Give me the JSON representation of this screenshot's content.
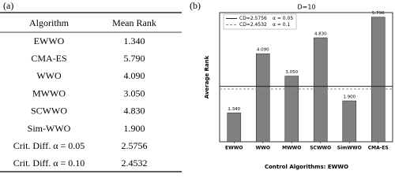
{
  "table": {
    "panel_label": "(a)",
    "header": [
      "Algorithm",
      "Mean Rank"
    ],
    "rows": [
      [
        "EWWO",
        "1.340"
      ],
      [
        "CMA-ES",
        "5.790"
      ],
      [
        "WWO",
        "4.090"
      ],
      [
        "MWWO",
        "3.050"
      ],
      [
        "SCWWO",
        "4.830"
      ],
      [
        "Sim-WWO",
        "1.900"
      ],
      [
        "Crit. Diff. α = 0.05",
        "2.5756"
      ],
      [
        "Crit. Diff. α = 0.10",
        "2.4532"
      ]
    ]
  },
  "chart_data": {
    "type": "bar",
    "panel_label": "(b)",
    "title": "D=10",
    "y_label": "Average Rank",
    "x_label": "Control Algorithms: EWWO",
    "categories": [
      "EWWO",
      "WWO",
      "MWWO",
      "SCWWO",
      "SimWWO",
      "CMA-ES"
    ],
    "values": [
      1.34,
      4.09,
      3.05,
      4.83,
      1.9,
      5.79
    ],
    "value_labels": [
      "1.340",
      "4.090",
      "3.050",
      "4.830",
      "1.900",
      "5.790"
    ],
    "color": "#808080",
    "ylim": [
      0,
      6
    ],
    "reference_lines": [
      {
        "name": "CD=2.5756",
        "alpha_label": "α = 0.05",
        "value": 2.5756,
        "style": "solid",
        "color": "#222222"
      },
      {
        "name": "CD=2.4532",
        "alpha_label": "α = 0.1",
        "value": 2.4532,
        "style": "dashed",
        "color": "#888888"
      }
    ],
    "legend": "upper left"
  }
}
